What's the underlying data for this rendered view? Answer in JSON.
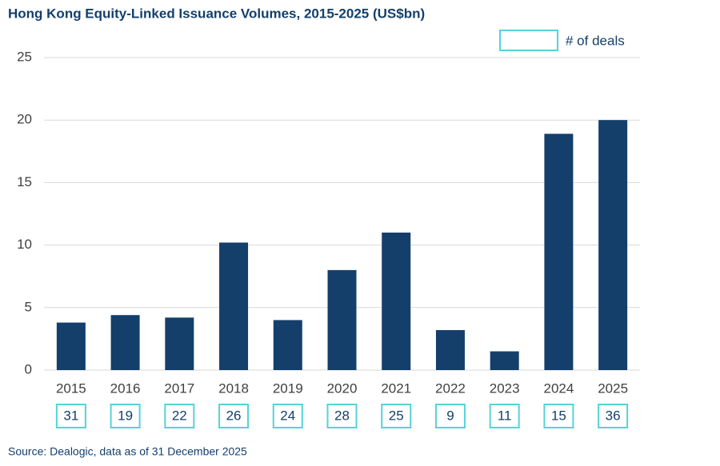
{
  "chart_data": {
    "type": "bar",
    "title": "Hong Kong Equity-Linked Issuance Volumes, 2015-2025 (US$bn)",
    "categories": [
      "2015",
      "2016",
      "2017",
      "2018",
      "2019",
      "2020",
      "2021",
      "2022",
      "2023",
      "2024",
      "2025"
    ],
    "values": [
      3.8,
      4.4,
      4.2,
      10.2,
      4.0,
      8.0,
      11.0,
      3.2,
      1.5,
      18.9,
      20.0
    ],
    "color": "#143f6b",
    "ylim": [
      0,
      25
    ],
    "yticks": [
      0,
      5,
      10,
      15,
      20,
      25
    ],
    "grid": true,
    "deal_counts_label": "# of deals",
    "deal_counts": [
      31,
      19,
      22,
      26,
      24,
      28,
      25,
      9,
      11,
      15,
      36
    ],
    "deal_box_color": "#56d2da",
    "source": "Source: Dealogic, data as of 31 December 2025"
  }
}
